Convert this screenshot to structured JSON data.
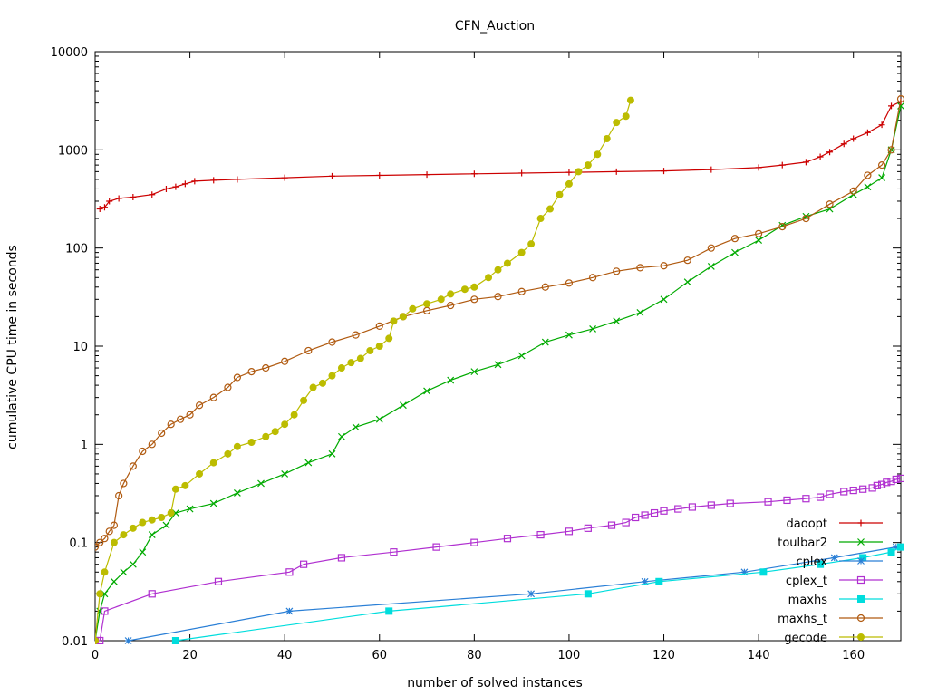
{
  "chart_data": {
    "type": "line",
    "title": "CFN_Auction",
    "xlabel": "number of solved instances",
    "ylabel": "cumulative CPU time in seconds",
    "xlim": [
      0,
      170
    ],
    "ylim": [
      0.01,
      10000
    ],
    "yscale": "log",
    "grid": false,
    "legend_position": "bottom-right",
    "x_ticks": [
      0,
      20,
      40,
      60,
      80,
      100,
      120,
      140,
      160
    ],
    "x_tick_labels": [
      "0",
      "20",
      "40",
      "60",
      "80",
      "100",
      "120",
      "140",
      "160"
    ],
    "y_ticks": [
      0.01,
      0.1,
      1,
      10,
      100,
      1000,
      10000
    ],
    "y_tick_labels": [
      "0.01",
      "0.1",
      "1",
      "10",
      "100",
      "1000",
      "10000"
    ],
    "series": [
      {
        "name": "daoopt",
        "color": "#cc0000",
        "marker": "plus",
        "x": [
          1,
          2,
          3,
          5,
          8,
          12,
          15,
          17,
          19,
          21,
          25,
          30,
          40,
          50,
          60,
          70,
          80,
          90,
          100,
          110,
          120,
          130,
          140,
          145,
          150,
          153,
          155,
          158,
          160,
          163,
          166,
          168,
          170
        ],
        "y": [
          250,
          260,
          300,
          320,
          330,
          350,
          400,
          420,
          450,
          480,
          490,
          500,
          520,
          540,
          550,
          560,
          570,
          580,
          590,
          600,
          610,
          630,
          660,
          700,
          750,
          850,
          950,
          1150,
          1300,
          1500,
          1800,
          2800,
          3100
        ]
      },
      {
        "name": "toulbar2",
        "color": "#00aa00",
        "marker": "x",
        "x": [
          0,
          1,
          2,
          4,
          6,
          8,
          10,
          12,
          15,
          17,
          20,
          25,
          30,
          35,
          40,
          45,
          50,
          52,
          55,
          60,
          65,
          70,
          75,
          80,
          85,
          90,
          95,
          100,
          105,
          110,
          115,
          120,
          125,
          130,
          135,
          140,
          145,
          150,
          155,
          160,
          163,
          166,
          168,
          170
        ],
        "y": [
          0.01,
          0.02,
          0.03,
          0.04,
          0.05,
          0.06,
          0.08,
          0.12,
          0.15,
          0.2,
          0.22,
          0.25,
          0.32,
          0.4,
          0.5,
          0.65,
          0.8,
          1.2,
          1.5,
          1.8,
          2.5,
          3.5,
          4.5,
          5.5,
          6.5,
          8,
          11,
          13,
          15,
          18,
          22,
          30,
          45,
          65,
          90,
          120,
          170,
          210,
          250,
          350,
          420,
          520,
          1000,
          2800
        ]
      },
      {
        "name": "cplex",
        "color": "#2a7fd6",
        "marker": "asterisk",
        "x": [
          7,
          41,
          92,
          116,
          137,
          156,
          169
        ],
        "y": [
          0.01,
          0.02,
          0.03,
          0.04,
          0.05,
          0.07,
          0.09
        ]
      },
      {
        "name": "cplex_t",
        "color": "#b030d0",
        "marker": "open-square",
        "x": [
          0,
          1,
          2,
          12,
          26,
          41,
          44,
          52,
          63,
          72,
          80,
          87,
          94,
          100,
          104,
          109,
          112,
          114,
          116,
          118,
          120,
          123,
          126,
          130,
          134,
          142,
          146,
          150,
          153,
          155,
          158,
          160,
          162,
          164,
          165,
          166,
          167,
          168,
          169,
          170
        ],
        "y": [
          0.01,
          0.01,
          0.02,
          0.03,
          0.04,
          0.05,
          0.06,
          0.07,
          0.08,
          0.09,
          0.1,
          0.11,
          0.12,
          0.13,
          0.14,
          0.15,
          0.16,
          0.18,
          0.19,
          0.2,
          0.21,
          0.22,
          0.23,
          0.24,
          0.25,
          0.26,
          0.27,
          0.28,
          0.29,
          0.31,
          0.33,
          0.34,
          0.35,
          0.36,
          0.38,
          0.39,
          0.41,
          0.42,
          0.44,
          0.45
        ]
      },
      {
        "name": "maxhs",
        "color": "#00dddd",
        "marker": "filled-square",
        "x": [
          17,
          62,
          104,
          119,
          141,
          153,
          162,
          168,
          170
        ],
        "y": [
          0.01,
          0.02,
          0.03,
          0.04,
          0.05,
          0.06,
          0.07,
          0.08,
          0.09
        ]
      },
      {
        "name": "maxhs_t",
        "color": "#b05a10",
        "marker": "open-circle",
        "x": [
          0,
          1,
          2,
          3,
          4,
          5,
          6,
          8,
          10,
          12,
          14,
          16,
          18,
          20,
          22,
          25,
          28,
          30,
          33,
          36,
          40,
          45,
          50,
          55,
          60,
          65,
          70,
          75,
          80,
          85,
          90,
          95,
          100,
          105,
          110,
          115,
          120,
          125,
          130,
          135,
          140,
          145,
          150,
          155,
          160,
          163,
          166,
          168,
          170
        ],
        "y": [
          0.09,
          0.1,
          0.11,
          0.13,
          0.15,
          0.3,
          0.4,
          0.6,
          0.85,
          1,
          1.3,
          1.6,
          1.8,
          2,
          2.5,
          3,
          3.8,
          4.8,
          5.5,
          6,
          7,
          9,
          11,
          13,
          16,
          20,
          23,
          26,
          30,
          32,
          36,
          40,
          44,
          50,
          58,
          63,
          66,
          75,
          100,
          125,
          140,
          165,
          200,
          280,
          380,
          550,
          700,
          1000,
          3300
        ]
      },
      {
        "name": "gecode",
        "color": "#bcbc00",
        "marker": "filled-circle",
        "x": [
          0,
          1,
          2,
          4,
          6,
          8,
          10,
          12,
          14,
          16,
          17,
          19,
          22,
          25,
          28,
          30,
          33,
          36,
          38,
          40,
          42,
          44,
          46,
          48,
          50,
          52,
          54,
          56,
          58,
          60,
          62,
          63,
          65,
          67,
          70,
          73,
          75,
          78,
          80,
          83,
          85,
          87,
          90,
          92,
          94,
          96,
          98,
          100,
          102,
          104,
          106,
          108,
          110,
          112,
          113
        ],
        "y": [
          0.01,
          0.03,
          0.05,
          0.1,
          0.12,
          0.14,
          0.16,
          0.17,
          0.18,
          0.2,
          0.35,
          0.38,
          0.5,
          0.65,
          0.8,
          0.95,
          1.05,
          1.2,
          1.35,
          1.6,
          2,
          2.8,
          3.8,
          4.2,
          5,
          6,
          6.8,
          7.5,
          9,
          10,
          12,
          18,
          20,
          24,
          27,
          30,
          34,
          38,
          40,
          50,
          60,
          70,
          90,
          110,
          200,
          250,
          350,
          450,
          600,
          700,
          900,
          1300,
          1900,
          2200,
          3200
        ]
      }
    ]
  }
}
